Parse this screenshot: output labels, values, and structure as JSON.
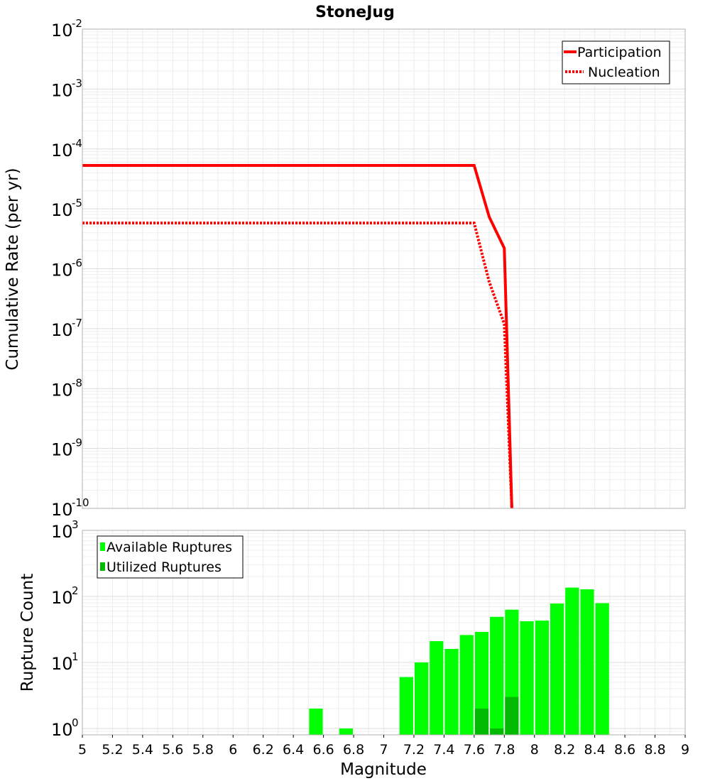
{
  "chart_data": [
    {
      "type": "line",
      "title": "StoneJug",
      "xlabel": "",
      "ylabel": "Cumulative Rate (per yr)",
      "xlim": [
        5,
        9
      ],
      "ylim": [
        1e-10,
        0.01
      ],
      "yscale": "log",
      "grid": true,
      "legend_position": "top-right",
      "y_tick_labels": [
        {
          "base": "10",
          "exp": "-2",
          "value": 0.01
        },
        {
          "base": "10",
          "exp": "-3",
          "value": 0.001
        },
        {
          "base": "10",
          "exp": "-4",
          "value": 0.0001
        },
        {
          "base": "10",
          "exp": "-5",
          "value": 1e-05
        },
        {
          "base": "10",
          "exp": "-6",
          "value": 1e-06
        },
        {
          "base": "10",
          "exp": "-7",
          "value": 1e-07
        },
        {
          "base": "10",
          "exp": "-8",
          "value": 1e-08
        },
        {
          "base": "10",
          "exp": "-9",
          "value": 1e-09
        },
        {
          "base": "10",
          "exp": "-10",
          "value": 1e-10
        }
      ],
      "series": [
        {
          "name": "Participation",
          "color": "#ff0000",
          "style": "solid",
          "x": [
            5.0,
            7.6,
            7.7,
            7.8,
            7.85
          ],
          "y": [
            5.3e-05,
            5.3e-05,
            7.3e-06,
            2.2e-06,
            1e-10
          ]
        },
        {
          "name": "Nucleation",
          "color": "#ff0000",
          "style": "dotted",
          "x": [
            5.0,
            7.6,
            7.7,
            7.8,
            7.85
          ],
          "y": [
            5.8e-06,
            5.8e-06,
            6e-07,
            1.2e-07,
            1e-10
          ]
        }
      ]
    },
    {
      "type": "bar",
      "xlabel": "Magnitude",
      "ylabel": "Rupture Count",
      "xlim": [
        5,
        9
      ],
      "ylim": [
        0.8,
        1000
      ],
      "yscale": "log",
      "grid": true,
      "legend_position": "top-left",
      "bar_width": 0.1,
      "x_tick_labels": [
        "5",
        "5.2",
        "5.4",
        "5.6",
        "5.8",
        "6",
        "6.2",
        "6.4",
        "6.6",
        "6.8",
        "7",
        "7.2",
        "7.4",
        "7.6",
        "7.8",
        "8",
        "8.2",
        "8.4",
        "8.6",
        "8.8",
        "9"
      ],
      "y_tick_labels": [
        {
          "base": "10",
          "exp": "3",
          "value": 1000
        },
        {
          "base": "10",
          "exp": "2",
          "value": 100
        },
        {
          "base": "10",
          "exp": "1",
          "value": 10
        },
        {
          "base": "10",
          "exp": "0",
          "value": 1
        }
      ],
      "series": [
        {
          "name": "Available Ruptures",
          "color": "#00ff00",
          "x": [
            6.55,
            6.75,
            7.15,
            7.25,
            7.35,
            7.45,
            7.55,
            7.65,
            7.75,
            7.85,
            7.95,
            8.05,
            8.15,
            8.25,
            8.35,
            8.45
          ],
          "values": [
            2,
            1,
            6,
            10,
            21,
            16,
            26,
            29,
            49,
            63,
            42,
            43,
            78,
            136,
            128,
            79
          ]
        },
        {
          "name": "Utilized Ruptures",
          "color": "#00bb00",
          "x": [
            7.65,
            7.75,
            7.85
          ],
          "values": [
            2,
            1,
            3
          ]
        }
      ]
    }
  ]
}
